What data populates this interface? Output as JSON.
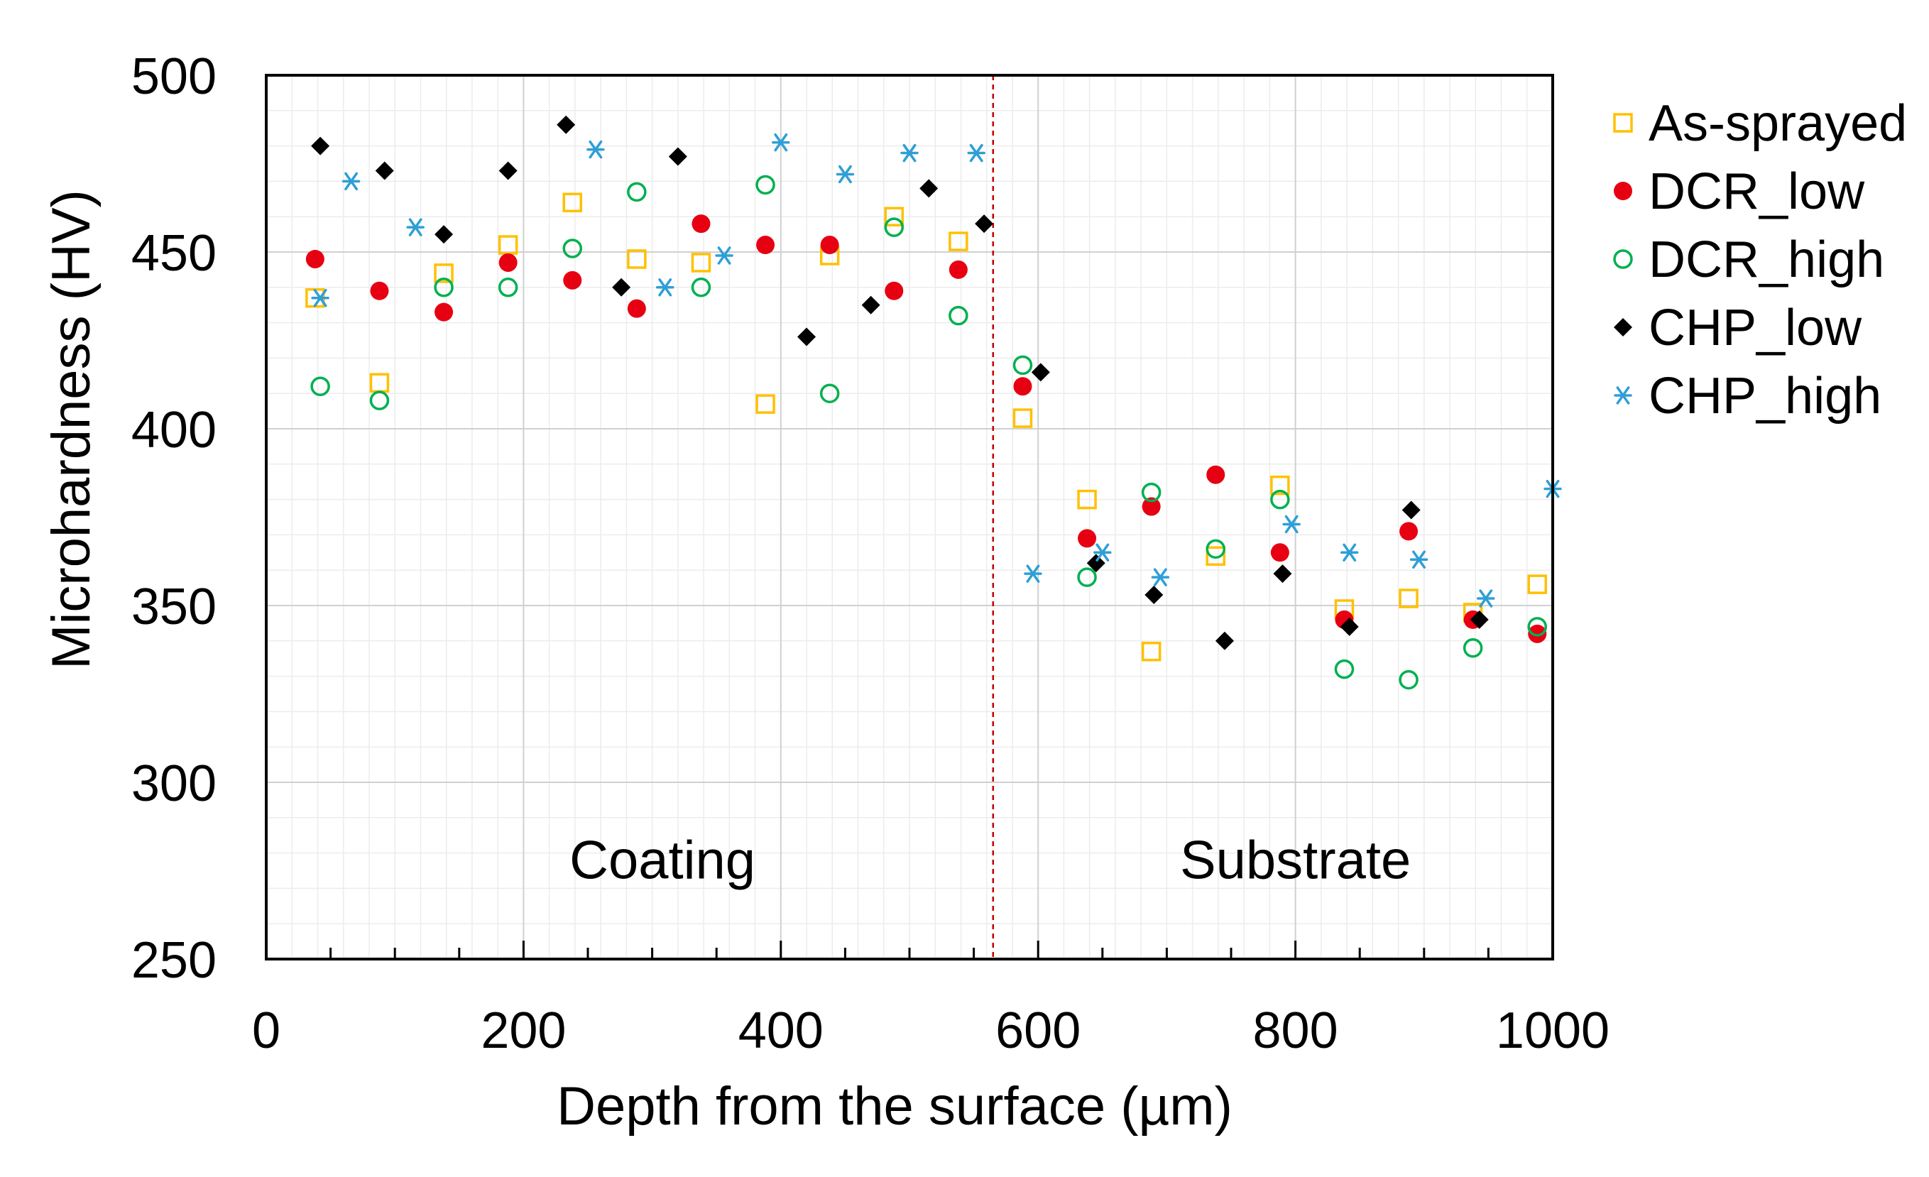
{
  "chart_data": {
    "type": "scatter",
    "xlabel": "Depth from the surface (µm)",
    "ylabel": "Microhardness (HV)",
    "xlim": [
      0,
      1000
    ],
    "ylim": [
      250,
      500
    ],
    "xticks": [
      "0",
      "200",
      "400",
      "600",
      "800",
      "1000"
    ],
    "yticks": [
      "250",
      "300",
      "350",
      "400",
      "450",
      "500"
    ],
    "grid": true,
    "legend_position": "right",
    "annotations": [
      {
        "text": "Coating",
        "x": 308,
        "y": 278
      },
      {
        "text": "Substrate",
        "x": 800,
        "y": 278
      }
    ],
    "boundary_line": {
      "x": 565,
      "color": "#c00000",
      "style": "dashed"
    },
    "series": [
      {
        "name": "As-sprayed",
        "marker": "open-square",
        "color": "#ffc000",
        "points": [
          [
            38,
            437
          ],
          [
            88,
            413
          ],
          [
            138,
            444
          ],
          [
            188,
            452
          ],
          [
            238,
            464
          ],
          [
            288,
            448
          ],
          [
            338,
            447
          ],
          [
            388,
            407
          ],
          [
            438,
            449
          ],
          [
            488,
            460
          ],
          [
            538,
            453
          ],
          [
            588,
            403
          ],
          [
            638,
            380
          ],
          [
            688,
            337
          ],
          [
            738,
            364
          ],
          [
            788,
            384
          ],
          [
            838,
            349
          ],
          [
            888,
            352
          ],
          [
            938,
            348
          ],
          [
            988,
            356
          ]
        ]
      },
      {
        "name": "DCR_low",
        "marker": "filled-circle",
        "color": "#e60012",
        "points": [
          [
            38,
            448
          ],
          [
            88,
            439
          ],
          [
            138,
            433
          ],
          [
            188,
            447
          ],
          [
            238,
            442
          ],
          [
            288,
            434
          ],
          [
            338,
            458
          ],
          [
            388,
            452
          ],
          [
            438,
            452
          ],
          [
            488,
            439
          ],
          [
            538,
            445
          ],
          [
            588,
            412
          ],
          [
            638,
            369
          ],
          [
            688,
            378
          ],
          [
            738,
            387
          ],
          [
            788,
            365
          ],
          [
            838,
            346
          ],
          [
            888,
            371
          ],
          [
            938,
            346
          ],
          [
            988,
            342
          ]
        ]
      },
      {
        "name": "DCR_high",
        "marker": "open-circle",
        "color": "#00b050",
        "points": [
          [
            42,
            412
          ],
          [
            88,
            408
          ],
          [
            138,
            440
          ],
          [
            188,
            440
          ],
          [
            238,
            451
          ],
          [
            288,
            467
          ],
          [
            338,
            440
          ],
          [
            388,
            469
          ],
          [
            438,
            410
          ],
          [
            488,
            457
          ],
          [
            538,
            432
          ],
          [
            588,
            418
          ],
          [
            638,
            358
          ],
          [
            688,
            382
          ],
          [
            738,
            366
          ],
          [
            788,
            380
          ],
          [
            838,
            332
          ],
          [
            888,
            329
          ],
          [
            938,
            338
          ],
          [
            988,
            344
          ]
        ]
      },
      {
        "name": "CHP_low",
        "marker": "filled-diamond",
        "color": "#000000",
        "points": [
          [
            42,
            480
          ],
          [
            92,
            473
          ],
          [
            138,
            455
          ],
          [
            188,
            473
          ],
          [
            233,
            486
          ],
          [
            276,
            440
          ],
          [
            320,
            477
          ],
          [
            420,
            426
          ],
          [
            470,
            435
          ],
          [
            515,
            468
          ],
          [
            558,
            458
          ],
          [
            602,
            416
          ],
          [
            645,
            362
          ],
          [
            690,
            353
          ],
          [
            745,
            340
          ],
          [
            790,
            359
          ],
          [
            842,
            344
          ],
          [
            890,
            377
          ],
          [
            943,
            346
          ]
        ]
      },
      {
        "name": "CHP_high",
        "marker": "asterisk",
        "color": "#2e9fd6",
        "points": [
          [
            42,
            437
          ],
          [
            66,
            470
          ],
          [
            116,
            457
          ],
          [
            256,
            479
          ],
          [
            310,
            440
          ],
          [
            356,
            449
          ],
          [
            400,
            481
          ],
          [
            450,
            472
          ],
          [
            500,
            478
          ],
          [
            552,
            478
          ],
          [
            596,
            359
          ],
          [
            650,
            365
          ],
          [
            695,
            358
          ],
          [
            797,
            373
          ],
          [
            842,
            365
          ],
          [
            896,
            363
          ],
          [
            948,
            352
          ],
          [
            1000,
            383
          ]
        ]
      }
    ]
  }
}
